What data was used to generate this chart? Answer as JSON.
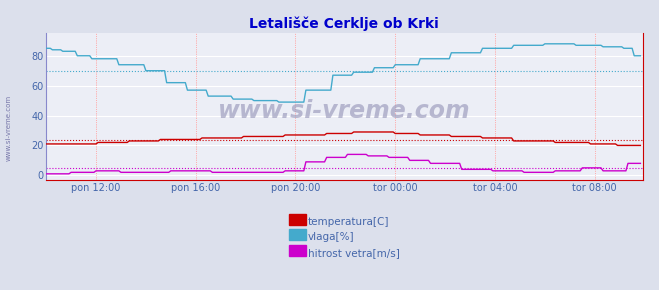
{
  "title": "Letališče Cerklje ob Krki",
  "title_color": "#0000cc",
  "bg_color": "#dce0ec",
  "plot_bg_color": "#eceef6",
  "xlabel_ticks": [
    "pon 12:00",
    "pon 16:00",
    "pon 20:00",
    "tor 00:00",
    "tor 04:00",
    "tor 08:00"
  ],
  "ylabel_ticks": [
    0,
    20,
    40,
    60,
    80
  ],
  "ylim": [
    -3,
    95
  ],
  "xlim": [
    0,
    287
  ],
  "watermark": "www.si-vreme.com",
  "legend": [
    "temperatura[C]",
    "vlaga[%]",
    "hitrost vetra[m/s]"
  ],
  "legend_colors": [
    "#cc0000",
    "#44aacc",
    "#cc00cc"
  ],
  "temp_color": "#cc0000",
  "vlaga_color": "#44aacc",
  "hitrost_color": "#cc00cc",
  "temp_avg_line": 23.5,
  "vlaga_avg_line": 70,
  "hitrost_avg_line": 5,
  "temp_avg_color": "#cc0000",
  "vlaga_avg_color": "#44aacc",
  "hitrost_avg_color": "#cc00cc",
  "axis_color": "#8888aa",
  "tick_color": "#4466aa",
  "right_arrow_color": "#cc0000",
  "bottom_arrow_color": "#cc0000"
}
